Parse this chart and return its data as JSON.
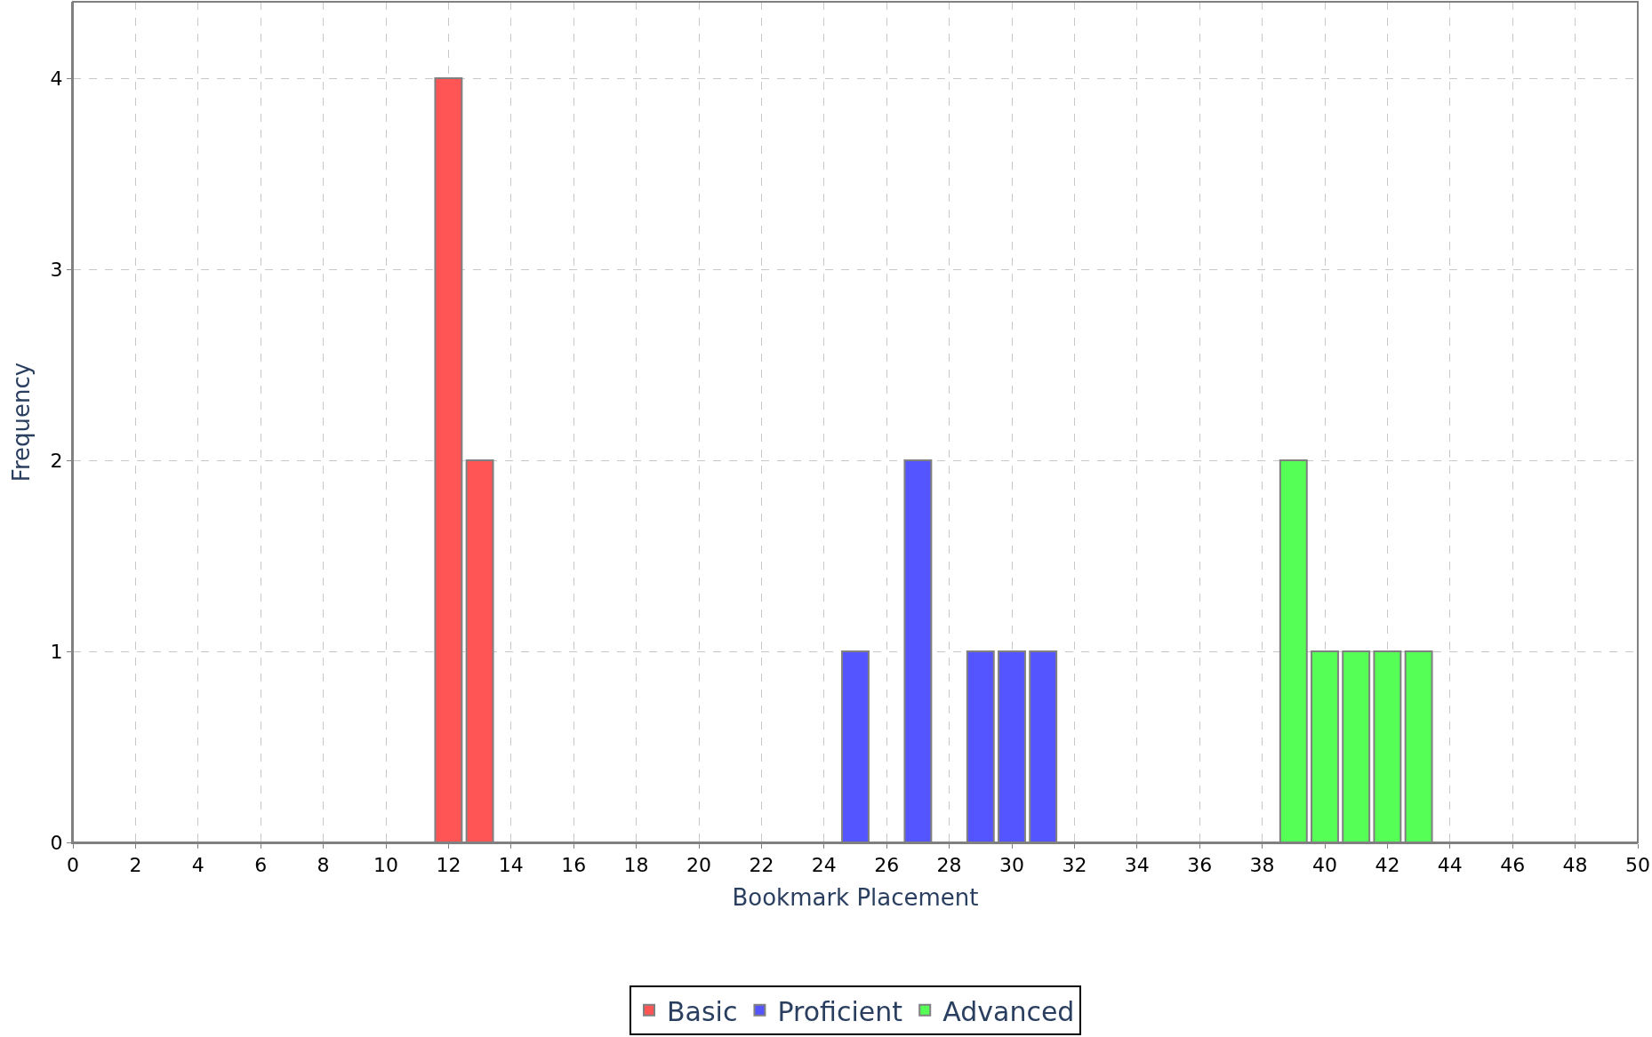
{
  "chart_data": {
    "type": "bar",
    "xlabel": "Bookmark Placement",
    "ylabel": "Frequency",
    "series": [
      {
        "name": "Basic",
        "color": "#ff5555",
        "x": [
          12,
          13
        ],
        "values": [
          4,
          2
        ]
      },
      {
        "name": "Proficient",
        "color": "#5555ff",
        "x": [
          25,
          27,
          29,
          30,
          31
        ],
        "values": [
          1,
          2,
          1,
          1,
          1
        ]
      },
      {
        "name": "Advanced",
        "color": "#55ff55",
        "x": [
          39,
          40,
          41,
          42,
          43
        ],
        "values": [
          2,
          1,
          1,
          1,
          1
        ]
      }
    ],
    "xlim": [
      0,
      50
    ],
    "xticks": [
      0,
      2,
      4,
      6,
      8,
      10,
      12,
      14,
      16,
      18,
      20,
      22,
      24,
      26,
      28,
      30,
      32,
      34,
      36,
      38,
      40,
      42,
      44,
      46,
      48,
      50
    ],
    "ylim": [
      0,
      4.4
    ],
    "yticks": [
      0,
      1,
      2,
      3,
      4
    ],
    "grid": true,
    "legend": "bottom"
  }
}
